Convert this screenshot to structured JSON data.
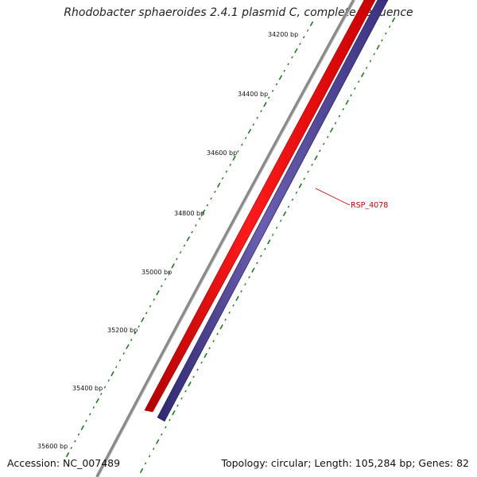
{
  "title": "Rhodobacter sphaeroides 2.4.1 plasmid C, complete sequence",
  "accession": "Accession: NC_007489",
  "summary": "Topology: circular; Length: 105,284 bp; Genes: 82",
  "colors": {
    "backbone": "#7a7a7a",
    "forward_strand": "#ff0000",
    "reverse_strand": "#4a3f8c",
    "ticks": "#1e7a1e",
    "gene_label": "#cc0000",
    "text": "#111111"
  },
  "tick_labels": [
    "34200 bp",
    "34400 bp",
    "34600 bp",
    "34800 bp",
    "35000 bp",
    "35200 bp",
    "35400 bp",
    "35600 bp"
  ],
  "gene_labels": [
    "RSP_4078"
  ]
}
